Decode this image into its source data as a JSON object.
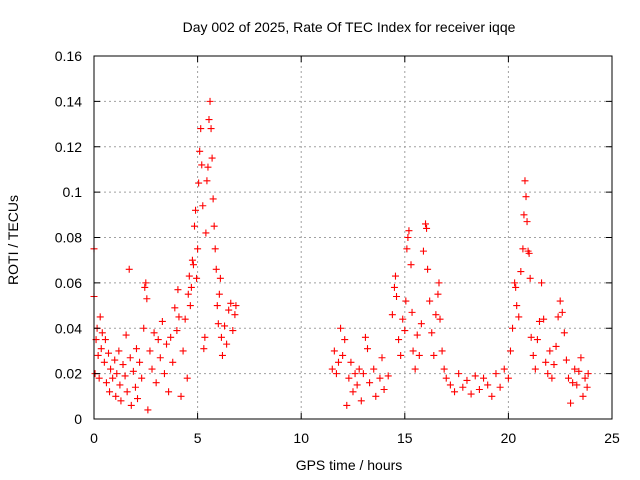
{
  "chart_data": {
    "type": "scatter",
    "title": "Day 002 of 2025, Rate Of TEC Index for receiver iqqe",
    "xlabel": "GPS time / hours",
    "ylabel": "ROTI / TECUs",
    "xlim": [
      0,
      25
    ],
    "ylim": [
      0,
      0.16
    ],
    "x_ticks": [
      0,
      5,
      10,
      15,
      20,
      25
    ],
    "x_tick_labels": [
      "0",
      "5",
      "10",
      "15",
      "20",
      "25"
    ],
    "y_ticks": [
      0,
      0.02,
      0.04,
      0.06,
      0.08,
      0.1,
      0.12,
      0.14,
      0.16
    ],
    "y_tick_labels": [
      "0",
      "0.02",
      "0.04",
      "0.06",
      "0.08",
      "0.1",
      "0.12",
      "0.14",
      "0.16"
    ],
    "grid": true,
    "marker": "+",
    "marker_color": "#ff0000",
    "series": [
      {
        "name": "ROTI",
        "points": [
          [
            0.0,
            0.075
          ],
          [
            0.0,
            0.054
          ],
          [
            0.05,
            0.02
          ],
          [
            0.1,
            0.035
          ],
          [
            0.15,
            0.04
          ],
          [
            0.2,
            0.028
          ],
          [
            0.25,
            0.018
          ],
          [
            0.3,
            0.045
          ],
          [
            0.35,
            0.031
          ],
          [
            0.4,
            0.038
          ],
          [
            0.5,
            0.025
          ],
          [
            0.55,
            0.035
          ],
          [
            0.6,
            0.016
          ],
          [
            0.7,
            0.029
          ],
          [
            0.75,
            0.012
          ],
          [
            0.8,
            0.022
          ],
          [
            0.9,
            0.018
          ],
          [
            1.0,
            0.026
          ],
          [
            1.05,
            0.01
          ],
          [
            1.1,
            0.02
          ],
          [
            1.2,
            0.03
          ],
          [
            1.25,
            0.015
          ],
          [
            1.3,
            0.008
          ],
          [
            1.4,
            0.024
          ],
          [
            1.5,
            0.019
          ],
          [
            1.55,
            0.037
          ],
          [
            1.6,
            0.012
          ],
          [
            1.7,
            0.066
          ],
          [
            1.75,
            0.027
          ],
          [
            1.8,
            0.006
          ],
          [
            1.9,
            0.021
          ],
          [
            2.0,
            0.014
          ],
          [
            2.05,
            0.031
          ],
          [
            2.1,
            0.009
          ],
          [
            2.2,
            0.025
          ],
          [
            2.3,
            0.018
          ],
          [
            2.4,
            0.04
          ],
          [
            2.45,
            0.058
          ],
          [
            2.5,
            0.06
          ],
          [
            2.55,
            0.053
          ],
          [
            2.6,
            0.004
          ],
          [
            2.7,
            0.03
          ],
          [
            2.8,
            0.022
          ],
          [
            2.9,
            0.038
          ],
          [
            3.0,
            0.016
          ],
          [
            3.1,
            0.035
          ],
          [
            3.2,
            0.027
          ],
          [
            3.3,
            0.043
          ],
          [
            3.4,
            0.02
          ],
          [
            3.5,
            0.033
          ],
          [
            3.6,
            0.012
          ],
          [
            3.7,
            0.036
          ],
          [
            3.8,
            0.025
          ],
          [
            3.9,
            0.049
          ],
          [
            4.0,
            0.039
          ],
          [
            4.05,
            0.057
          ],
          [
            4.1,
            0.045
          ],
          [
            4.2,
            0.01
          ],
          [
            4.3,
            0.03
          ],
          [
            4.4,
            0.044
          ],
          [
            4.5,
            0.018
          ],
          [
            4.55,
            0.055
          ],
          [
            4.6,
            0.063
          ],
          [
            4.65,
            0.05
          ],
          [
            4.7,
            0.058
          ],
          [
            4.75,
            0.07
          ],
          [
            4.8,
            0.068
          ],
          [
            4.85,
            0.085
          ],
          [
            4.9,
            0.092
          ],
          [
            4.95,
            0.062
          ],
          [
            5.0,
            0.075
          ],
          [
            5.05,
            0.104
          ],
          [
            5.1,
            0.118
          ],
          [
            5.15,
            0.128
          ],
          [
            5.2,
            0.112
          ],
          [
            5.25,
            0.094
          ],
          [
            5.3,
            0.031
          ],
          [
            5.35,
            0.036
          ],
          [
            5.4,
            0.082
          ],
          [
            5.45,
            0.105
          ],
          [
            5.5,
            0.111
          ],
          [
            5.55,
            0.132
          ],
          [
            5.6,
            0.14
          ],
          [
            5.65,
            0.128
          ],
          [
            5.7,
            0.115
          ],
          [
            5.75,
            0.097
          ],
          [
            5.8,
            0.085
          ],
          [
            5.85,
            0.075
          ],
          [
            5.9,
            0.066
          ],
          [
            5.95,
            0.05
          ],
          [
            6.0,
            0.042
          ],
          [
            6.05,
            0.055
          ],
          [
            6.1,
            0.062
          ],
          [
            6.15,
            0.036
          ],
          [
            6.2,
            0.028
          ],
          [
            6.3,
            0.041
          ],
          [
            6.4,
            0.033
          ],
          [
            6.5,
            0.048
          ],
          [
            6.6,
            0.051
          ],
          [
            6.7,
            0.039
          ],
          [
            6.8,
            0.046
          ],
          [
            6.85,
            0.05
          ],
          [
            11.5,
            0.022
          ],
          [
            11.6,
            0.03
          ],
          [
            11.7,
            0.02
          ],
          [
            11.8,
            0.025
          ],
          [
            11.9,
            0.04
          ],
          [
            12.0,
            0.028
          ],
          [
            12.1,
            0.035
          ],
          [
            12.2,
            0.006
          ],
          [
            12.3,
            0.018
          ],
          [
            12.4,
            0.025
          ],
          [
            12.5,
            0.012
          ],
          [
            12.6,
            0.02
          ],
          [
            12.7,
            0.015
          ],
          [
            12.8,
            0.022
          ],
          [
            12.9,
            0.008
          ],
          [
            13.0,
            0.02
          ],
          [
            13.1,
            0.036
          ],
          [
            13.2,
            0.031
          ],
          [
            13.3,
            0.016
          ],
          [
            13.5,
            0.022
          ],
          [
            13.6,
            0.01
          ],
          [
            13.8,
            0.018
          ],
          [
            13.9,
            0.027
          ],
          [
            14.0,
            0.013
          ],
          [
            14.2,
            0.019
          ],
          [
            14.4,
            0.046
          ],
          [
            14.5,
            0.058
          ],
          [
            14.55,
            0.063
          ],
          [
            14.6,
            0.054
          ],
          [
            14.7,
            0.035
          ],
          [
            14.8,
            0.028
          ],
          [
            14.9,
            0.044
          ],
          [
            15.0,
            0.039
          ],
          [
            15.05,
            0.052
          ],
          [
            15.1,
            0.075
          ],
          [
            15.15,
            0.08
          ],
          [
            15.2,
            0.083
          ],
          [
            15.3,
            0.068
          ],
          [
            15.35,
            0.047
          ],
          [
            15.4,
            0.03
          ],
          [
            15.5,
            0.022
          ],
          [
            15.6,
            0.037
          ],
          [
            15.7,
            0.028
          ],
          [
            15.8,
            0.042
          ],
          [
            15.9,
            0.074
          ],
          [
            16.0,
            0.086
          ],
          [
            16.05,
            0.084
          ],
          [
            16.1,
            0.066
          ],
          [
            16.2,
            0.052
          ],
          [
            16.3,
            0.038
          ],
          [
            16.4,
            0.028
          ],
          [
            16.5,
            0.046
          ],
          [
            16.6,
            0.055
          ],
          [
            16.65,
            0.06
          ],
          [
            16.7,
            0.044
          ],
          [
            16.8,
            0.03
          ],
          [
            16.9,
            0.022
          ],
          [
            17.0,
            0.018
          ],
          [
            17.2,
            0.015
          ],
          [
            17.4,
            0.012
          ],
          [
            17.6,
            0.02
          ],
          [
            17.8,
            0.014
          ],
          [
            18.0,
            0.017
          ],
          [
            18.2,
            0.011
          ],
          [
            18.4,
            0.019
          ],
          [
            18.6,
            0.013
          ],
          [
            18.8,
            0.018
          ],
          [
            19.0,
            0.015
          ],
          [
            19.2,
            0.01
          ],
          [
            19.4,
            0.02
          ],
          [
            19.6,
            0.014
          ],
          [
            19.8,
            0.022
          ],
          [
            20.0,
            0.018
          ],
          [
            20.1,
            0.03
          ],
          [
            20.2,
            0.04
          ],
          [
            20.3,
            0.06
          ],
          [
            20.35,
            0.058
          ],
          [
            20.4,
            0.05
          ],
          [
            20.5,
            0.045
          ],
          [
            20.6,
            0.065
          ],
          [
            20.7,
            0.075
          ],
          [
            20.75,
            0.09
          ],
          [
            20.8,
            0.105
          ],
          [
            20.85,
            0.098
          ],
          [
            20.9,
            0.087
          ],
          [
            20.95,
            0.074
          ],
          [
            21.0,
            0.073
          ],
          [
            21.05,
            0.062
          ],
          [
            21.1,
            0.036
          ],
          [
            21.2,
            0.028
          ],
          [
            21.3,
            0.022
          ],
          [
            21.4,
            0.035
          ],
          [
            21.5,
            0.043
          ],
          [
            21.6,
            0.06
          ],
          [
            21.7,
            0.044
          ],
          [
            21.8,
            0.025
          ],
          [
            21.9,
            0.02
          ],
          [
            22.0,
            0.03
          ],
          [
            22.1,
            0.018
          ],
          [
            22.2,
            0.024
          ],
          [
            22.3,
            0.032
          ],
          [
            22.4,
            0.045
          ],
          [
            22.5,
            0.052
          ],
          [
            22.6,
            0.047
          ],
          [
            22.7,
            0.038
          ],
          [
            22.8,
            0.026
          ],
          [
            22.9,
            0.018
          ],
          [
            23.0,
            0.007
          ],
          [
            23.1,
            0.016
          ],
          [
            23.2,
            0.022
          ],
          [
            23.3,
            0.015
          ],
          [
            23.4,
            0.021
          ],
          [
            23.5,
            0.027
          ],
          [
            23.6,
            0.01
          ],
          [
            23.7,
            0.018
          ],
          [
            23.8,
            0.014
          ],
          [
            23.85,
            0.02
          ]
        ]
      }
    ]
  }
}
